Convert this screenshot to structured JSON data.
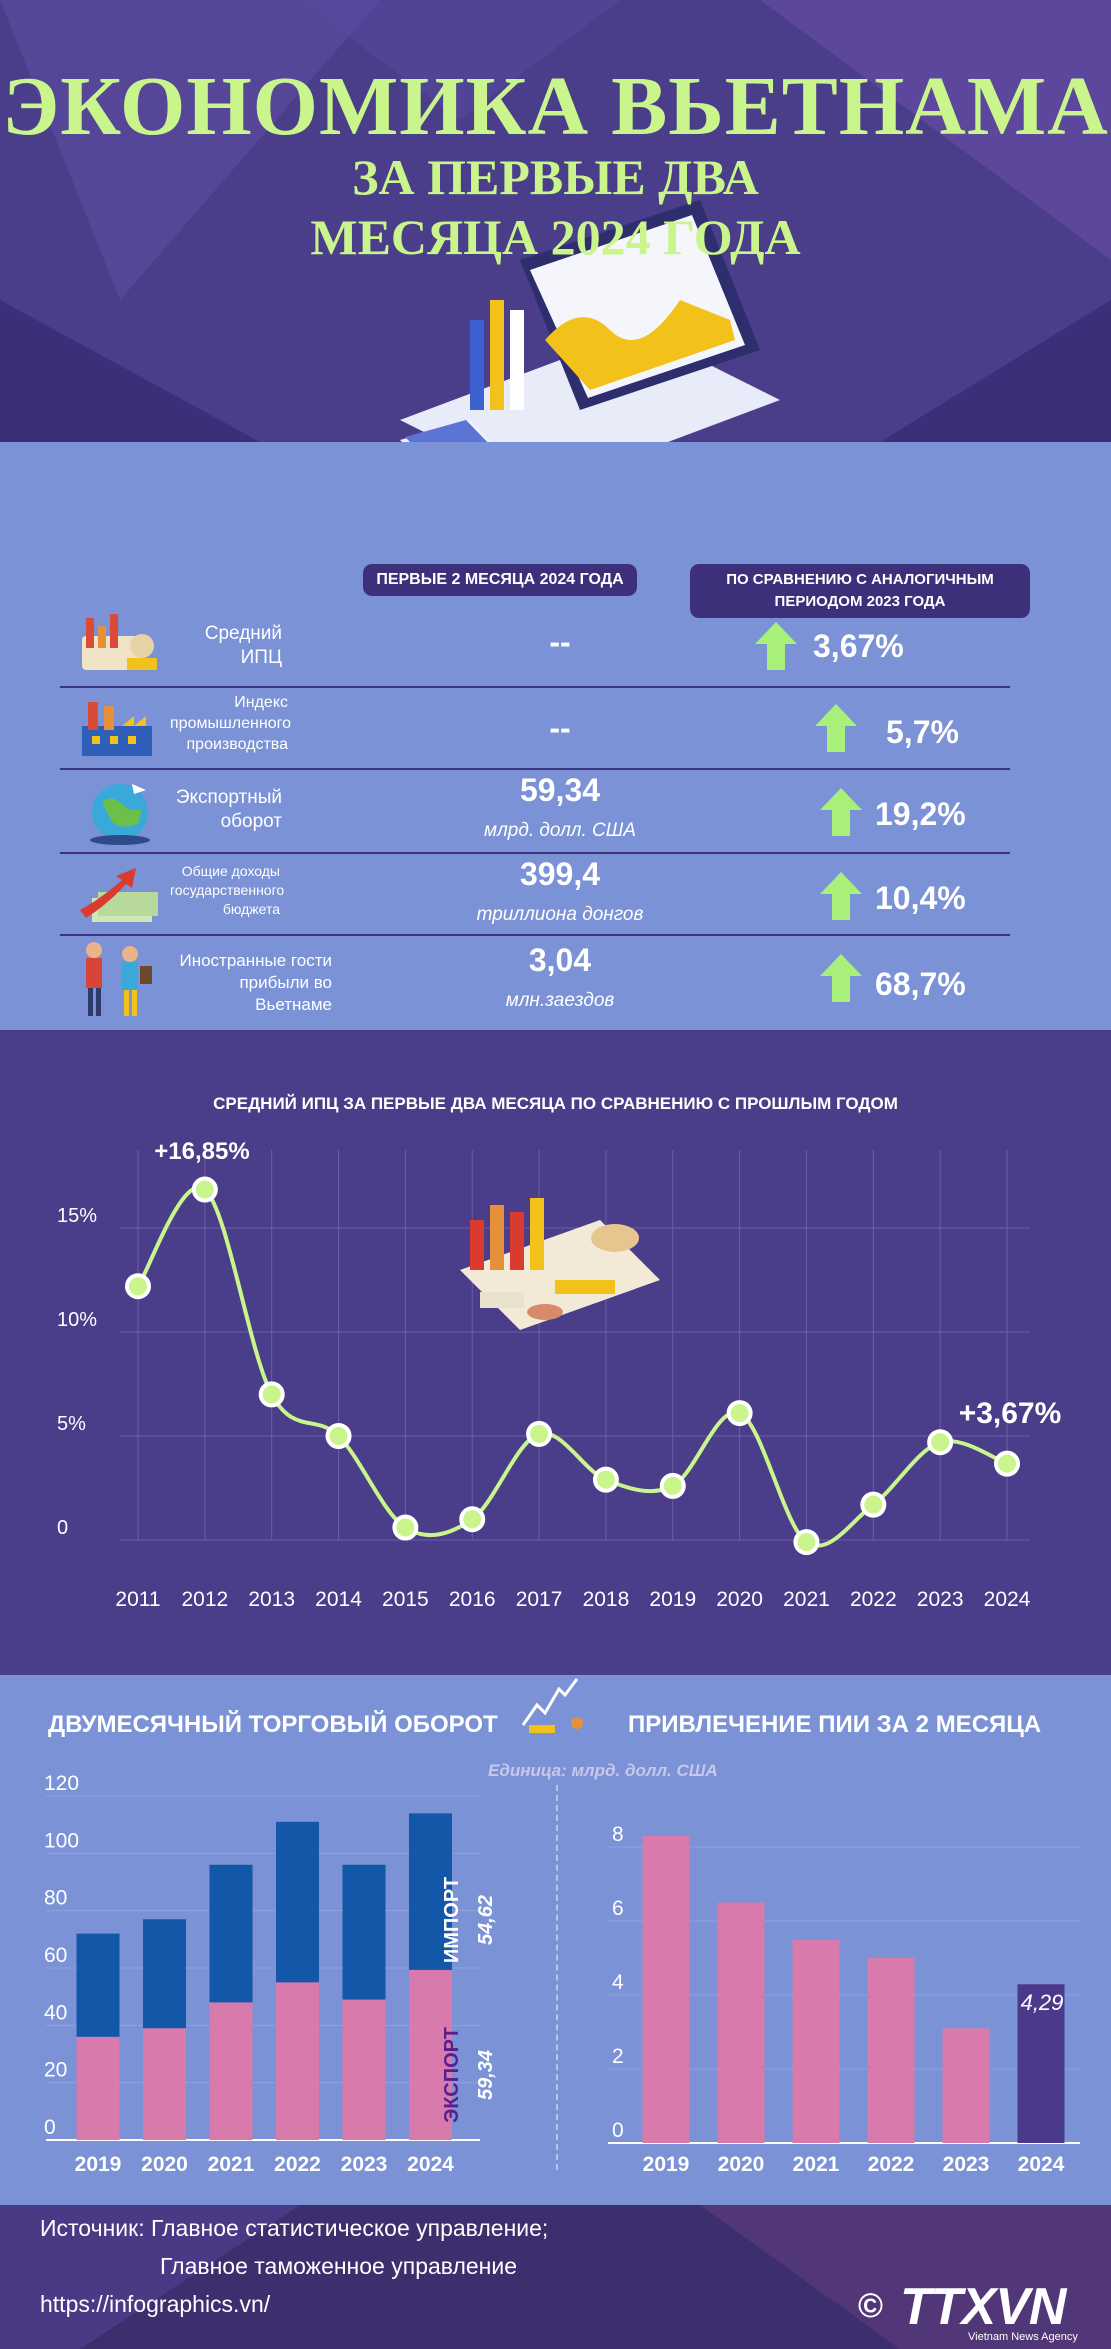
{
  "header": {
    "title_line1": "ЭКОНОМИКА ВЬЕТНАМА",
    "title_line2": "ЗА ПЕРВЫЕ ДВА",
    "title_line3": "МЕСЯЦА 2024 ГОДА"
  },
  "stats": {
    "col_current": "ПЕРВЫЕ 2 МЕСЯЦА 2024 ГОДА",
    "col_compare": "ПО СРАВНЕНИЮ С АНАЛОГИЧНЫМ ПЕРИОДОМ 2023 ГОДА",
    "rows": [
      {
        "label": "Средний ИПЦ",
        "value": "--",
        "unit": "",
        "change": "3,67%",
        "icon": "cpi-goods-icon"
      },
      {
        "label": "Индекс промышленного производства",
        "value": "--",
        "unit": "",
        "change": "5,7%",
        "icon": "factory-icon"
      },
      {
        "label": "Экспортный оборот",
        "value": "59,34",
        "unit": "млрд. долл. США",
        "change": "19,2%",
        "icon": "globe-export-icon"
      },
      {
        "label": "Общие доходы государственного бюджета",
        "value": "399,4",
        "unit": "триллиона донгов",
        "change": "10,4%",
        "icon": "money-growth-icon"
      },
      {
        "label": "Иностранные гости прибыли во Вьетнаме",
        "value": "3,04",
        "unit": "млн.заездов",
        "change": "68,7%",
        "icon": "tourists-icon"
      }
    ]
  },
  "cpi_chart": {
    "title": "СРЕДНИЙ ИПЦ ЗА ПЕРВЫЕ ДВА МЕСЯЦА ПО СРАВНЕНИЮ С ПРОШЛЫМ ГОДОМ",
    "peak_label": "+16,85%",
    "last_label": "+3,67%"
  },
  "trade": {
    "title": "ДВУМЕСЯЧНЫЙ ТОРГОВЫЙ ОБОРОТ",
    "import_label": "ИМПОРТ",
    "export_label": "ЭКСПОРТ",
    "import_value": "54,62",
    "export_value": "59,34"
  },
  "fdi": {
    "title": "ПРИВЛЕЧЕНИЕ ПИИ ЗА 2 МЕСЯЦА",
    "unit": "Единица: млрд. долл. США",
    "highlight_value": "4,29"
  },
  "footer": {
    "source_line1": "Источник: Главное статистическое управление;",
    "source_line2": "Главное таможенное управление",
    "url": "https://infographics.vn/",
    "brand": "TTXVN",
    "brand_sub": "Vietnam News Agency",
    "copyright": "©"
  },
  "colors": {
    "accent_green": "#c9f58c",
    "purple": "#4a3d8a",
    "blue": "#7b92d6",
    "import_blue": "#1357a8",
    "export_pink": "#d97aac",
    "highlight_purple": "#4b3a8c"
  },
  "chart_data": [
    {
      "type": "line",
      "title": "СРЕДНИЙ ИПЦ ЗА ПЕРВЫЕ ДВА МЕСЯЦА ПО СРАВНЕНИЮ С ПРОШЛЫМ ГОДОМ",
      "x": [
        "2011",
        "2012",
        "2013",
        "2014",
        "2015",
        "2016",
        "2017",
        "2018",
        "2019",
        "2020",
        "2021",
        "2022",
        "2023",
        "2024"
      ],
      "values": [
        12.2,
        16.85,
        7.0,
        5.0,
        0.6,
        1.0,
        5.1,
        2.9,
        2.6,
        6.1,
        -0.1,
        1.7,
        4.7,
        3.67
      ],
      "yticks": [
        "0",
        "5%",
        "10%",
        "15%"
      ],
      "ytick_values": [
        0,
        5,
        10,
        15
      ],
      "ylim": [
        -2,
        18
      ]
    },
    {
      "type": "bar",
      "stacked": true,
      "title": "ДВУМЕСЯЧНЫЙ ТОРГОВЫЙ ОБОРОТ",
      "categories": [
        "2019",
        "2020",
        "2021",
        "2022",
        "2023",
        "2024"
      ],
      "series": [
        {
          "name": "ЭКСПОРТ",
          "values": [
            36,
            39,
            48,
            55,
            49,
            59.34
          ]
        },
        {
          "name": "ИМПОРТ",
          "values": [
            36,
            38,
            48,
            56,
            47,
            54.62
          ]
        }
      ],
      "yticks": [
        "0",
        "20",
        "40",
        "60",
        "80",
        "100",
        "120"
      ],
      "ylim": [
        0,
        120
      ]
    },
    {
      "type": "bar",
      "title": "ПРИВЛЕЧЕНИЕ ПИИ ЗА 2 МЕСЯЦА",
      "categories": [
        "2019",
        "2020",
        "2021",
        "2022",
        "2023",
        "2024"
      ],
      "values": [
        8.3,
        6.5,
        5.5,
        5.0,
        3.1,
        4.29
      ],
      "yticks": [
        "0",
        "2",
        "4",
        "6",
        "8"
      ],
      "ylim": [
        0,
        9
      ]
    }
  ]
}
